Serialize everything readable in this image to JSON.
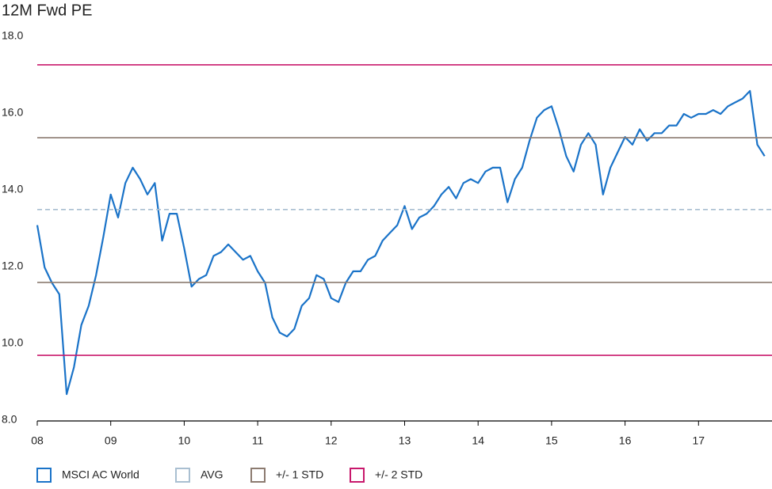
{
  "chart_data": {
    "type": "line",
    "title": "12M Fwd PE",
    "xlim": [
      2008,
      2018
    ],
    "xticks": [
      {
        "value": 2008,
        "label": "08"
      },
      {
        "value": 2009,
        "label": "09"
      },
      {
        "value": 2010,
        "label": "10"
      },
      {
        "value": 2011,
        "label": "11"
      },
      {
        "value": 2012,
        "label": "12"
      },
      {
        "value": 2013,
        "label": "13"
      },
      {
        "value": 2014,
        "label": "14"
      },
      {
        "value": 2015,
        "label": "15"
      },
      {
        "value": 2016,
        "label": "16"
      },
      {
        "value": 2017,
        "label": "17"
      }
    ],
    "ylim": [
      8,
      18
    ],
    "yticks": [
      {
        "value": 8,
        "label": "8.0"
      },
      {
        "value": 10,
        "label": "10.0"
      },
      {
        "value": 12,
        "label": "12.0"
      },
      {
        "value": 14,
        "label": "14.0"
      },
      {
        "value": 16,
        "label": "16.0"
      },
      {
        "value": 18,
        "label": "18.0"
      }
    ],
    "series": [
      {
        "name": "MSCI AC World",
        "color": "#1a73c8",
        "x": [
          2008.0,
          2008.1,
          2008.2,
          2008.3,
          2008.4,
          2008.5,
          2008.6,
          2008.7,
          2008.8,
          2008.9,
          2009.0,
          2009.1,
          2009.2,
          2009.3,
          2009.4,
          2009.5,
          2009.6,
          2009.7,
          2009.8,
          2009.9,
          2010.0,
          2010.1,
          2010.2,
          2010.3,
          2010.4,
          2010.5,
          2010.6,
          2010.7,
          2010.8,
          2010.9,
          2011.0,
          2011.1,
          2011.2,
          2011.3,
          2011.4,
          2011.5,
          2011.6,
          2011.7,
          2011.8,
          2011.9,
          2012.0,
          2012.1,
          2012.2,
          2012.3,
          2012.4,
          2012.5,
          2012.6,
          2012.7,
          2012.8,
          2012.9,
          2013.0,
          2013.1,
          2013.2,
          2013.3,
          2013.4,
          2013.5,
          2013.6,
          2013.7,
          2013.8,
          2013.9,
          2014.0,
          2014.1,
          2014.2,
          2014.3,
          2014.4,
          2014.5,
          2014.6,
          2014.7,
          2014.8,
          2014.9,
          2015.0,
          2015.1,
          2015.2,
          2015.3,
          2015.4,
          2015.5,
          2015.6,
          2015.7,
          2015.8,
          2015.9,
          2016.0,
          2016.1,
          2016.2,
          2016.3,
          2016.4,
          2016.5,
          2016.6,
          2016.7,
          2016.8,
          2016.9,
          2017.0,
          2017.1,
          2017.2,
          2017.3,
          2017.4,
          2017.5,
          2017.6,
          2017.7,
          2017.8,
          2017.9
        ],
        "values": [
          13.1,
          12.0,
          11.6,
          11.3,
          8.7,
          9.4,
          10.5,
          11.0,
          11.8,
          12.8,
          13.9,
          13.3,
          14.2,
          14.6,
          14.3,
          13.9,
          14.2,
          12.7,
          13.4,
          13.4,
          12.5,
          11.5,
          11.7,
          11.8,
          12.3,
          12.4,
          12.6,
          12.4,
          12.2,
          12.3,
          11.9,
          11.6,
          10.7,
          10.3,
          10.2,
          10.4,
          11.0,
          11.2,
          11.8,
          11.7,
          11.2,
          11.1,
          11.6,
          11.9,
          11.9,
          12.2,
          12.3,
          12.7,
          12.9,
          13.1,
          13.6,
          13.0,
          13.3,
          13.4,
          13.6,
          13.9,
          14.1,
          13.8,
          14.2,
          14.3,
          14.2,
          14.5,
          14.6,
          14.6,
          13.7,
          14.3,
          14.6,
          15.3,
          15.9,
          16.1,
          16.2,
          15.6,
          14.9,
          14.5,
          15.2,
          15.5,
          15.2,
          13.9,
          14.6,
          15.0,
          15.4,
          15.2,
          15.6,
          15.3,
          15.5,
          15.5,
          15.7,
          15.7,
          16.0,
          15.9,
          16.0,
          16.0,
          16.1,
          16.0,
          16.2,
          16.3,
          16.4,
          16.6,
          15.2,
          14.9
        ]
      },
      {
        "name": "AVG",
        "color": "#a9bfd1",
        "dashed": true,
        "values": [
          13.51
        ]
      },
      {
        "name": "+/- 1 STD",
        "color": "#8c7b70",
        "values": [
          15.38,
          11.61
        ]
      },
      {
        "name": "+/- 2 STD",
        "color": "#c8186c",
        "values": [
          17.28,
          9.71
        ]
      }
    ]
  }
}
